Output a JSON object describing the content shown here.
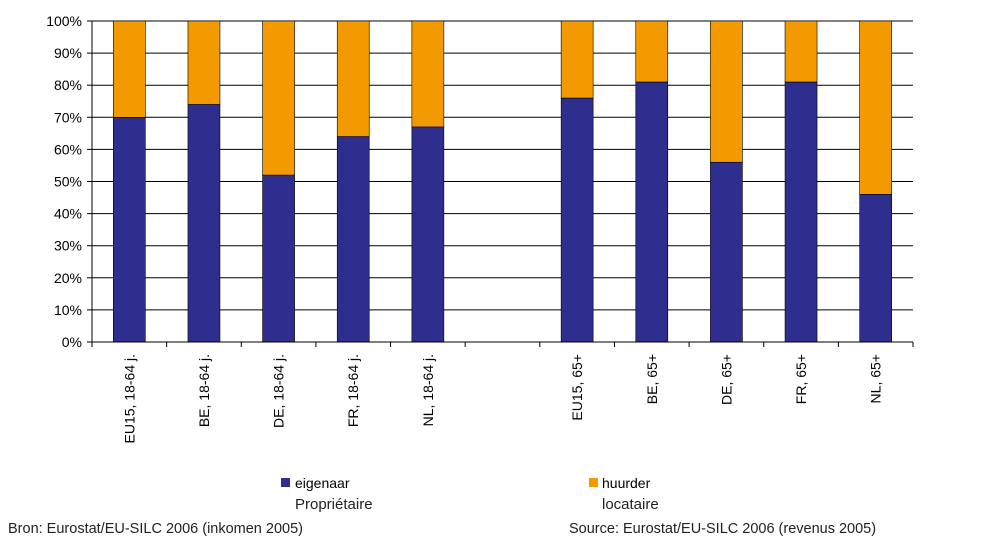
{
  "chart_data": {
    "type": "bar",
    "stacked": true,
    "categories": [
      "EU15, 18-64 j.",
      "BE, 18-64 j.",
      "DE, 18-64 j.",
      "FR, 18-64 j.",
      "NL, 18-64 j.",
      "",
      "EU15, 65+",
      "BE, 65+",
      "DE, 65+",
      "FR, 65+",
      "NL, 65+"
    ],
    "series": [
      {
        "name": "eigenaar",
        "name_fr": "Propriétaire",
        "color": "#2e2e8f",
        "values": [
          70,
          74,
          52,
          64,
          67,
          null,
          76,
          81,
          56,
          81,
          46
        ]
      },
      {
        "name": "huurder",
        "name_fr": "locataire",
        "color": "#f29a00",
        "values": [
          30,
          26,
          48,
          36,
          33,
          null,
          24,
          19,
          44,
          19,
          54
        ]
      }
    ],
    "ylim": [
      0,
      100
    ],
    "yticks": [
      "0%",
      "10%",
      "20%",
      "30%",
      "40%",
      "50%",
      "60%",
      "70%",
      "80%",
      "90%",
      "100%"
    ],
    "grid": true,
    "legend_position": "bottom",
    "xlabel": "",
    "ylabel": ""
  },
  "sources": {
    "left": "Bron: Eurostat/EU-SILC 2006 (inkomen 2005)",
    "right": "Source: Eurostat/EU-SILC 2006 (revenus 2005)"
  }
}
